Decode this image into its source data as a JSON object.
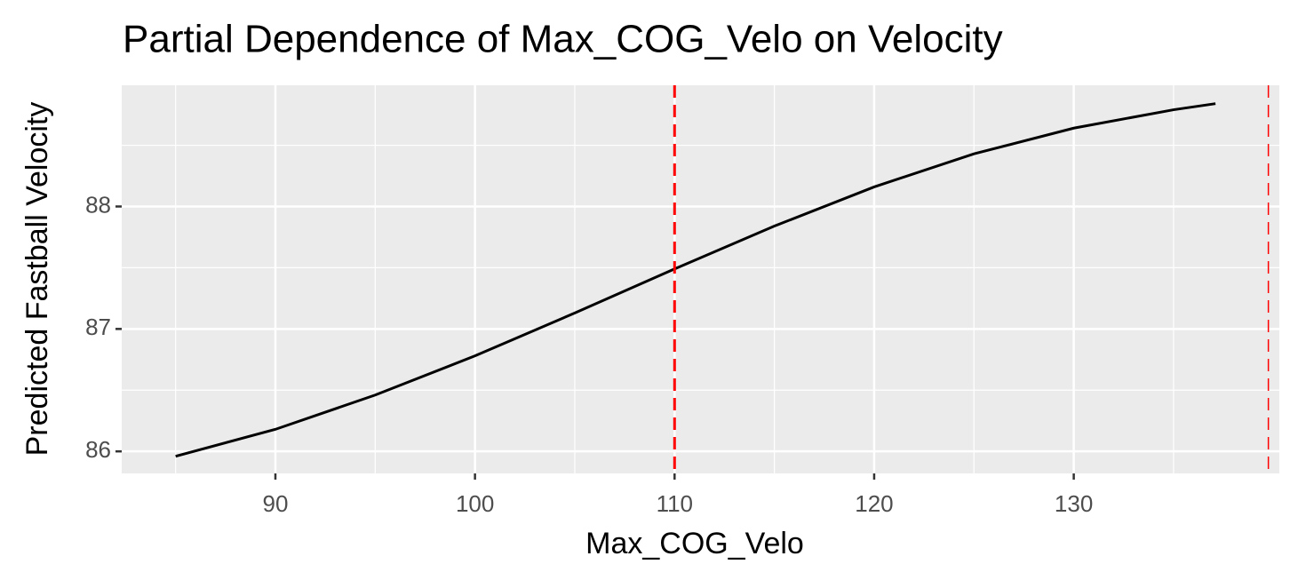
{
  "chart_data": {
    "type": "line",
    "title": "Partial Dependence of Max_COG_Velo on Velocity",
    "x_label": "Max_COG_Velo",
    "y_label": "Predicted Fastball Velocity",
    "x": [
      85,
      90,
      95,
      100,
      105,
      110,
      115,
      120,
      125,
      130,
      135,
      137.1
    ],
    "series": [
      {
        "name": "Max_COG_Velo",
        "color": "#000000",
        "values": [
          85.96,
          86.18,
          86.46,
          86.78,
          87.13,
          87.49,
          87.84,
          88.16,
          88.43,
          88.64,
          88.79,
          88.84
        ]
      }
    ],
    "xlim": [
      82.3,
      140.3
    ],
    "ylim": [
      85.82,
      88.99
    ],
    "xticks": [
      90,
      100,
      110,
      120,
      130
    ],
    "yticks": [
      86,
      87,
      88
    ],
    "x_minor_grid": [
      85,
      95,
      105,
      115,
      125,
      135
    ],
    "y_minor_grid": [
      86.5,
      87.5,
      88.5
    ],
    "vlines": [
      {
        "x": 110,
        "color": "#ff0000"
      },
      {
        "x": 139.75,
        "color": "#ff0000"
      }
    ],
    "grid": true
  }
}
